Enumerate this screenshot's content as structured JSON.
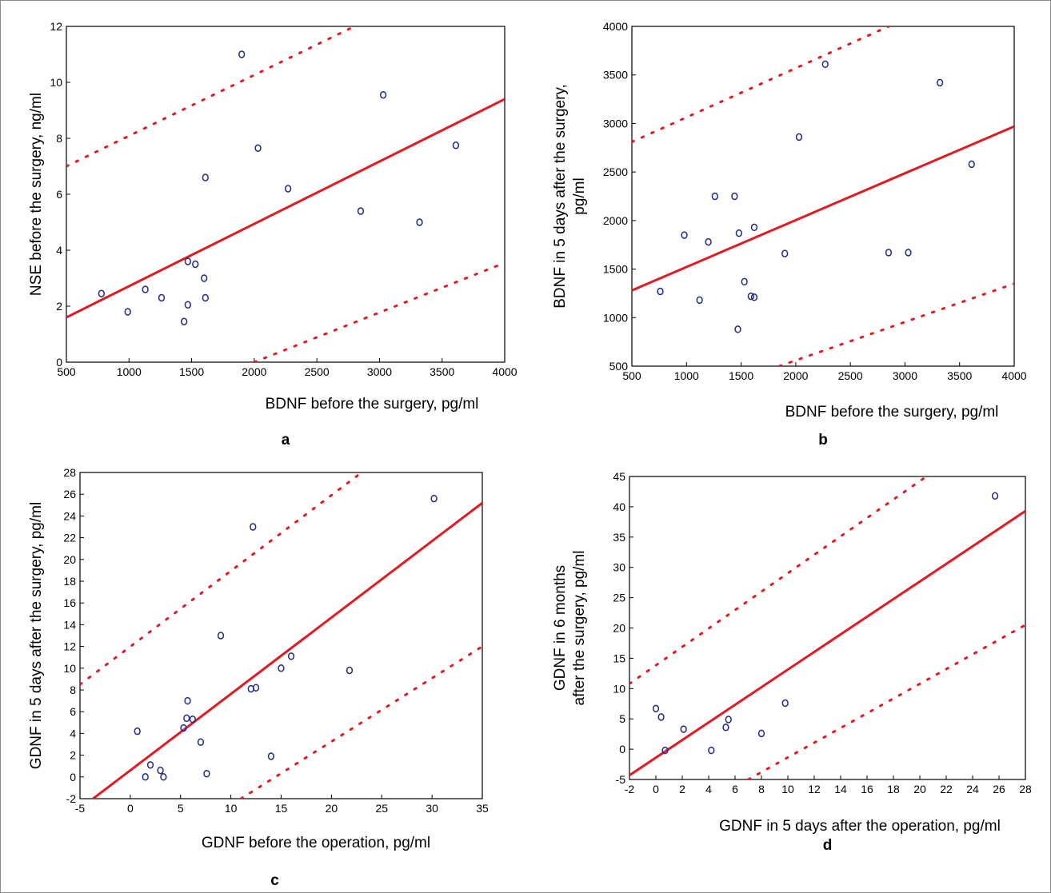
{
  "panels": [
    {
      "id": "a",
      "label": "a",
      "xlabel": "BDNF before the surgery, pg/ml",
      "ylabel": [
        "NSE before the surgery, ng/ml"
      ],
      "xlim": [
        500,
        4000
      ],
      "ylim": [
        0,
        12
      ],
      "xticks": [
        500,
        1000,
        1500,
        2000,
        2500,
        3000,
        3500,
        4000
      ],
      "yticks": [
        0,
        2,
        4,
        6,
        8,
        10,
        12
      ],
      "regression_line": [
        [
          500,
          1.6
        ],
        [
          4000,
          9.4
        ]
      ],
      "upper_band": [
        [
          500,
          7.0
        ],
        [
          2800,
          12.0
        ]
      ],
      "lower_band": [
        [
          2000,
          0.0
        ],
        [
          4000,
          3.55
        ]
      ],
      "points": [
        [
          780,
          2.45
        ],
        [
          990,
          1.8
        ],
        [
          1130,
          2.6
        ],
        [
          1260,
          2.3
        ],
        [
          1440,
          1.45
        ],
        [
          1470,
          2.05
        ],
        [
          1470,
          3.6
        ],
        [
          1530,
          3.5
        ],
        [
          1600,
          3.0
        ],
        [
          1610,
          2.3
        ],
        [
          1610,
          6.6
        ],
        [
          1900,
          11.0
        ],
        [
          2030,
          7.65
        ],
        [
          2270,
          6.2
        ],
        [
          2850,
          5.4
        ],
        [
          3030,
          9.55
        ],
        [
          3320,
          5.0
        ],
        [
          3610,
          7.75
        ]
      ]
    },
    {
      "id": "b",
      "label": "b",
      "xlabel": "BDNF before the surgery, pg/ml",
      "ylabel": [
        "BDNF in 5 days after the surgery,",
        "pg/ml"
      ],
      "xlim": [
        500,
        4000
      ],
      "ylim": [
        500,
        4000
      ],
      "xticks": [
        500,
        1000,
        1500,
        2000,
        2500,
        3000,
        3500,
        4000
      ],
      "yticks": [
        500,
        1000,
        1500,
        2000,
        2500,
        3000,
        3500,
        4000
      ],
      "regression_line": [
        [
          500,
          1280
        ],
        [
          4000,
          2970
        ]
      ],
      "upper_band": [
        [
          500,
          2810
        ],
        [
          2850,
          4000
        ]
      ],
      "lower_band": [
        [
          1850,
          500
        ],
        [
          4000,
          1350
        ]
      ],
      "points": [
        [
          760,
          1270
        ],
        [
          980,
          1850
        ],
        [
          1120,
          1180
        ],
        [
          1200,
          1780
        ],
        [
          1260,
          2250
        ],
        [
          1440,
          2250
        ],
        [
          1470,
          880
        ],
        [
          1480,
          1870
        ],
        [
          1530,
          1370
        ],
        [
          1590,
          1220
        ],
        [
          1620,
          1210
        ],
        [
          1620,
          1930
        ],
        [
          1900,
          1660
        ],
        [
          2030,
          2860
        ],
        [
          2270,
          3610
        ],
        [
          2850,
          1670
        ],
        [
          3030,
          1670
        ],
        [
          3320,
          3420
        ],
        [
          3610,
          2580
        ]
      ]
    },
    {
      "id": "c",
      "label": "c",
      "xlabel": "GDNF before the operation, pg/ml",
      "ylabel": [
        "GDNF in 5 days after the surgery, pg/ml"
      ],
      "xlim": [
        -5,
        35
      ],
      "ylim": [
        -2,
        28
      ],
      "xticks": [
        -5,
        0,
        5,
        10,
        15,
        20,
        25,
        30,
        35
      ],
      "yticks": [
        -2,
        0,
        2,
        4,
        6,
        8,
        10,
        12,
        14,
        16,
        18,
        20,
        22,
        24,
        26,
        28
      ],
      "regression_line": [
        [
          -3.7,
          -2.0
        ],
        [
          35,
          25.2
        ]
      ],
      "upper_band": [
        [
          -5,
          8.5
        ],
        [
          23,
          28.0
        ]
      ],
      "lower_band": [
        [
          11,
          -2.0
        ],
        [
          35,
          12.0
        ]
      ],
      "points": [
        [
          0.7,
          4.2
        ],
        [
          1.5,
          0.0
        ],
        [
          2.0,
          1.1
        ],
        [
          3.0,
          0.6
        ],
        [
          3.3,
          0.0
        ],
        [
          5.3,
          4.5
        ],
        [
          5.6,
          5.4
        ],
        [
          5.7,
          7.0
        ],
        [
          6.2,
          5.3
        ],
        [
          7.0,
          3.2
        ],
        [
          7.6,
          0.3
        ],
        [
          9.0,
          13.0
        ],
        [
          12.0,
          8.1
        ],
        [
          12.2,
          23.0
        ],
        [
          12.5,
          8.2
        ],
        [
          14.0,
          1.9
        ],
        [
          15.0,
          10.0
        ],
        [
          16.0,
          11.1
        ],
        [
          21.8,
          9.8
        ],
        [
          30.2,
          25.6
        ]
      ]
    },
    {
      "id": "d",
      "label": "d",
      "xlabel": "GDNF in 5 days after the operation, pg/ml",
      "ylabel": [
        "GDNF in 6 months",
        "after the surgery, pg/ml"
      ],
      "xlim": [
        -2,
        28
      ],
      "ylim": [
        -5,
        45
      ],
      "xticks": [
        -2,
        0,
        2,
        4,
        6,
        8,
        10,
        12,
        14,
        16,
        18,
        20,
        22,
        24,
        26,
        28
      ],
      "yticks": [
        -5,
        0,
        5,
        10,
        15,
        20,
        25,
        30,
        35,
        40,
        45
      ],
      "regression_line": [
        [
          -2,
          -4.3
        ],
        [
          28,
          39.3
        ]
      ],
      "upper_band": [
        [
          -2,
          10.8
        ],
        [
          20.5,
          45.0
        ]
      ],
      "lower_band": [
        [
          7,
          -5.0
        ],
        [
          28,
          20.5
        ]
      ],
      "points": [
        [
          0.0,
          6.7
        ],
        [
          0.4,
          5.3
        ],
        [
          0.7,
          -0.2
        ],
        [
          2.1,
          3.3
        ],
        [
          4.2,
          -0.2
        ],
        [
          5.3,
          3.6
        ],
        [
          5.5,
          4.9
        ],
        [
          8.0,
          2.6
        ],
        [
          9.8,
          7.6
        ],
        [
          25.7,
          41.8
        ]
      ]
    }
  ],
  "colors": {
    "line": "#e01b24",
    "marker": "#1f2a8c",
    "axis": "#000000"
  }
}
